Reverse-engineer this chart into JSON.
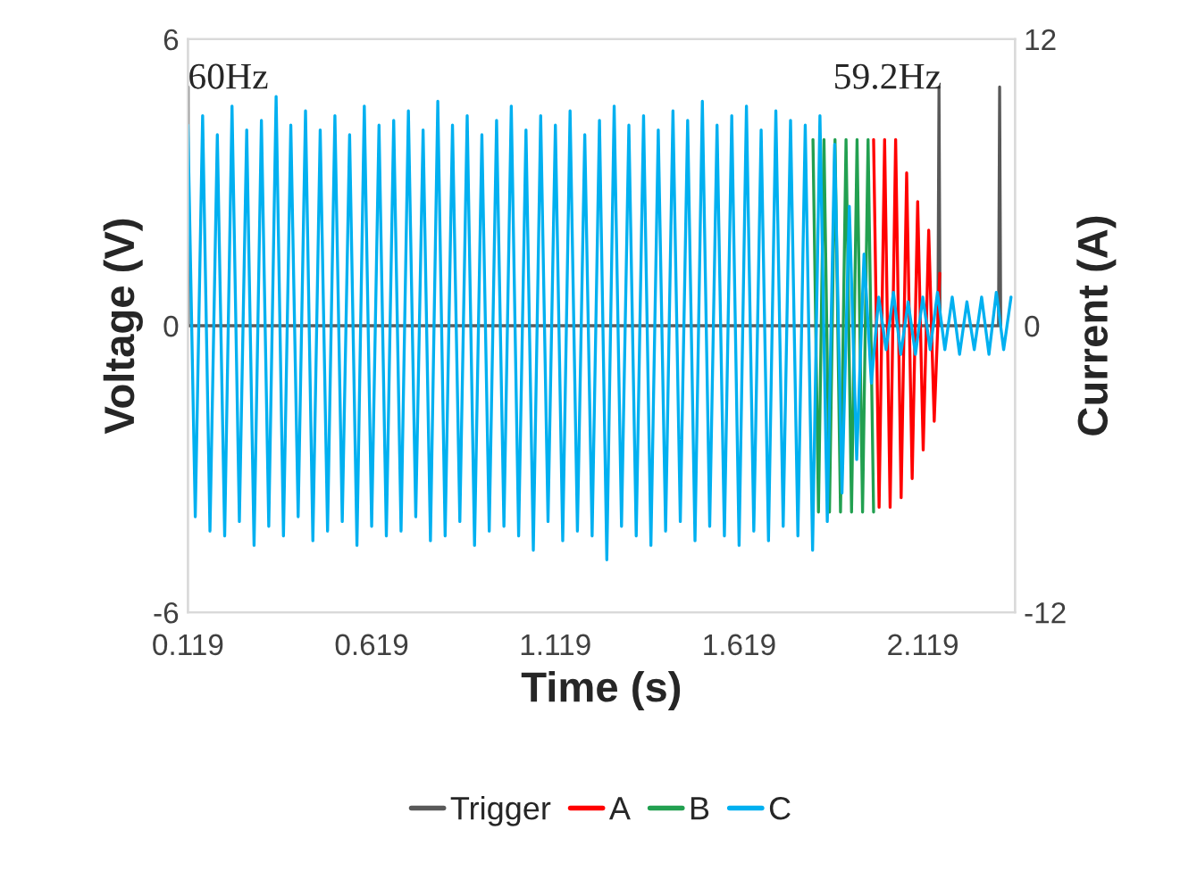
{
  "chart_data": {
    "type": "line",
    "xlabel": "Time (s)",
    "ylabel": "Voltage (V)",
    "y2label": "Current (A)",
    "xlim": [
      0.119,
      2.37
    ],
    "xticks": [
      0.119,
      0.619,
      1.119,
      1.619,
      2.119
    ],
    "ylim": [
      -6,
      6
    ],
    "yticks": [
      -6,
      0,
      6
    ],
    "y2lim": [
      -12,
      12
    ],
    "y2ticks": [
      -12,
      0,
      12
    ],
    "grid": false,
    "legend": "bottom",
    "marker": "none",
    "line_style": "solid",
    "annotations": [
      "60Hz",
      "59.2Hz"
    ],
    "series": [
      {
        "name": "Trigger",
        "color": "#595959",
        "x": [
          0.119,
          0.1195,
          0.12,
          2.16,
          2.163,
          2.166,
          2.325,
          2.328,
          2.331
        ],
        "values": [
          0,
          5,
          0,
          0,
          5,
          0,
          0,
          5,
          0
        ]
      },
      {
        "name": "A",
        "color": "#ff0000",
        "x": [
          1.985,
          2.0,
          2.015,
          2.03,
          2.045,
          2.06,
          2.075,
          2.09,
          2.105,
          2.12,
          2.135,
          2.15,
          2.165
        ],
        "values": [
          3.9,
          -3.8,
          3.9,
          -3.8,
          3.9,
          -3.6,
          3.2,
          -3.2,
          2.6,
          -2.6,
          2.0,
          -2.0,
          1.1
        ]
      },
      {
        "name": "B",
        "color": "#22a050",
        "x": [
          1.82,
          1.835,
          1.85,
          1.865,
          1.88,
          1.895,
          1.91,
          1.925,
          1.94,
          1.955,
          1.97,
          1.985
        ],
        "values": [
          3.9,
          -3.9,
          3.9,
          -3.9,
          3.9,
          -3.9,
          3.9,
          -3.9,
          3.9,
          -3.9,
          3.9,
          -3.9
        ]
      },
      {
        "name": "C",
        "color": "#00b0f0",
        "x": [
          0.119,
          0.139,
          0.159,
          0.179,
          0.199,
          0.219,
          0.239,
          0.259,
          0.279,
          0.299,
          0.319,
          0.339,
          0.359,
          0.379,
          0.399,
          0.419,
          0.439,
          0.459,
          0.479,
          0.499,
          0.519,
          0.539,
          0.559,
          0.579,
          0.599,
          0.619,
          0.639,
          0.659,
          0.679,
          0.699,
          0.719,
          0.739,
          0.759,
          0.779,
          0.799,
          0.819,
          0.839,
          0.859,
          0.879,
          0.899,
          0.919,
          0.939,
          0.959,
          0.979,
          0.999,
          1.019,
          1.039,
          1.059,
          1.079,
          1.099,
          1.119,
          1.139,
          1.159,
          1.179,
          1.199,
          1.219,
          1.239,
          1.259,
          1.279,
          1.299,
          1.319,
          1.339,
          1.359,
          1.379,
          1.399,
          1.419,
          1.439,
          1.459,
          1.479,
          1.499,
          1.519,
          1.539,
          1.559,
          1.579,
          1.599,
          1.619,
          1.639,
          1.659,
          1.679,
          1.699,
          1.719,
          1.739,
          1.759,
          1.779,
          1.799,
          1.819,
          1.839,
          1.859,
          1.879,
          1.899,
          1.919,
          1.939,
          1.959,
          1.979,
          1.999,
          2.019,
          2.039,
          2.059,
          2.079,
          2.099,
          2.119,
          2.139,
          2.159,
          2.179,
          2.199,
          2.219,
          2.239,
          2.259,
          2.279,
          2.299,
          2.319,
          2.339,
          2.359
        ],
        "values": [
          4.2,
          -4.0,
          4.4,
          -4.3,
          4.0,
          -4.4,
          4.6,
          -4.1,
          4.1,
          -4.6,
          4.3,
          -4.2,
          4.8,
          -4.4,
          4.2,
          -4.0,
          4.5,
          -4.5,
          4.1,
          -4.3,
          4.4,
          -4.1,
          4.0,
          -4.6,
          4.6,
          -4.2,
          4.2,
          -4.4,
          4.3,
          -4.3,
          4.5,
          -4.0,
          4.1,
          -4.5,
          4.7,
          -4.4,
          4.2,
          -4.1,
          4.4,
          -4.6,
          4.0,
          -4.3,
          4.3,
          -4.2,
          4.6,
          -4.4,
          4.1,
          -4.7,
          4.4,
          -4.1,
          4.2,
          -4.5,
          4.5,
          -4.3,
          4.0,
          -4.4,
          4.3,
          -4.9,
          4.6,
          -4.2,
          4.2,
          -4.4,
          4.4,
          -4.6,
          4.1,
          -4.3,
          4.5,
          -4.1,
          4.3,
          -4.5,
          4.7,
          -4.2,
          4.2,
          -4.4,
          4.4,
          -4.6,
          4.6,
          -4.3,
          4.1,
          -4.5,
          4.5,
          -4.2,
          4.3,
          -4.4,
          4.2,
          -4.7,
          4.4,
          -4.1,
          3.8,
          -3.5,
          2.5,
          -2.8,
          1.5,
          -1.2,
          0.6,
          -0.5,
          0.7,
          -0.6,
          0.5,
          -0.6,
          0.6,
          -0.5,
          0.7,
          -0.5,
          0.6,
          -0.6,
          0.5,
          -0.5,
          0.6,
          -0.6,
          0.7,
          -0.5,
          0.6
        ]
      }
    ]
  }
}
